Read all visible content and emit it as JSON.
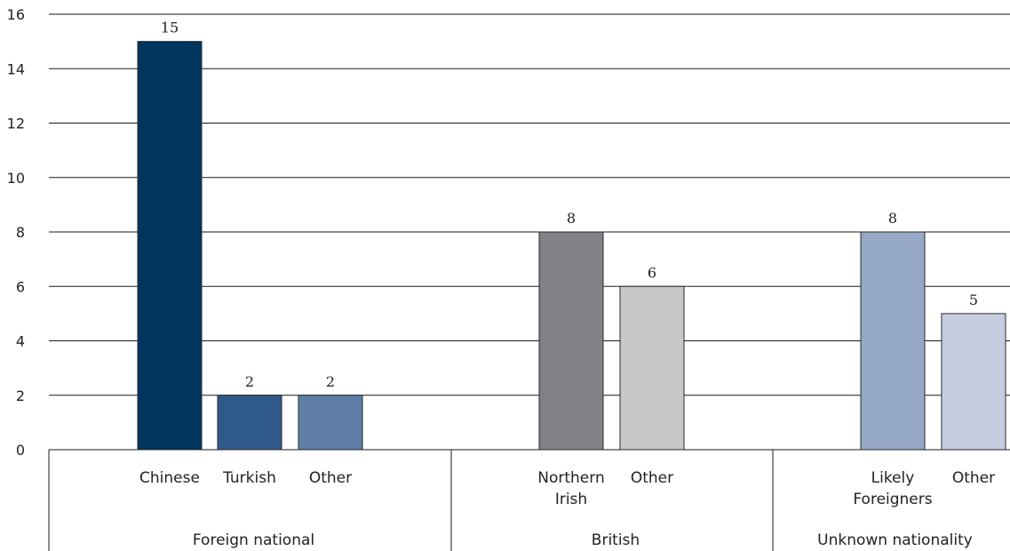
{
  "chart_data": {
    "type": "bar",
    "title": "",
    "xlabel": "",
    "ylabel": "",
    "ylim": [
      0,
      16
    ],
    "yticks": [
      0,
      2,
      4,
      6,
      8,
      10,
      12,
      14,
      16
    ],
    "grid": true,
    "legend": "none",
    "groups": [
      {
        "name": "Foreign national",
        "bars": [
          {
            "label": [
              "Chinese"
            ],
            "value": 15,
            "color": "#003560"
          },
          {
            "label": [
              "Turkish"
            ],
            "value": 2,
            "color": "#2f5a8a"
          },
          {
            "label": [
              "Other"
            ],
            "value": 2,
            "color": "#5f7fa8"
          }
        ]
      },
      {
        "name": "British",
        "bars": [
          {
            "label": [
              "Northern",
              "Irish"
            ],
            "value": 8,
            "color": "#818286"
          },
          {
            "label": [
              "Other"
            ],
            "value": 6,
            "color": "#c7c8ca"
          }
        ]
      },
      {
        "name": "Unknown nationality",
        "bars": [
          {
            "label": [
              "Likely",
              "Foreigners"
            ],
            "value": 8,
            "color": "#95a9c7"
          },
          {
            "label": [
              "Other"
            ],
            "value": 5,
            "color": "#c5cde0"
          }
        ]
      }
    ]
  }
}
